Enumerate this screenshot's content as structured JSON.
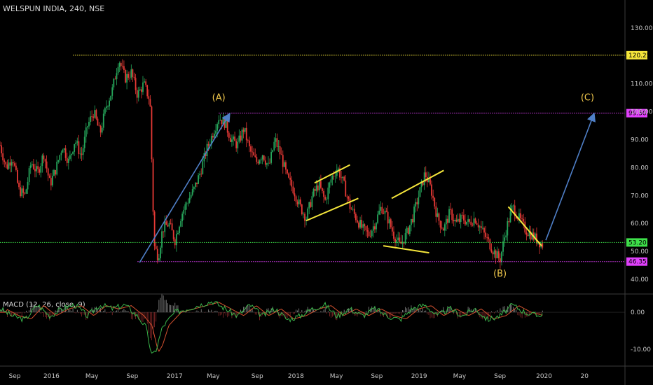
{
  "header": {
    "symbol_line": "WELSPUN INDIA, 240, NSE",
    "macd_label": "MACD (12, 26, close, 9)"
  },
  "colors": {
    "background": "#000000",
    "up_candle": "#26a65b",
    "down_candle": "#e53935",
    "trendline": "#f5e63b",
    "arrow": "#4f7fc7",
    "level_yellow": "#f5e63b",
    "level_magenta": "#e040fb",
    "level_green": "#3ee04a",
    "macd_line": "#3ab54a",
    "signal_line": "#d4512f"
  },
  "chart_data": {
    "type": "line",
    "title": "WELSPUN INDIA, 240, NSE",
    "y_axis": {
      "ticks": [
        "130.00",
        "110.00",
        "100.00",
        "90.00",
        "80.00",
        "70.00",
        "60.00",
        "50.00",
        "40.00"
      ],
      "min": 36,
      "max": 135
    },
    "x_axis": {
      "ticks": [
        "Sep",
        "2016",
        "May",
        "Sep",
        "2017",
        "May",
        "Sep",
        "2018",
        "May",
        "Sep",
        "2019",
        "May",
        "Sep",
        "2020",
        "20"
      ]
    },
    "price_path": [
      [
        0,
        88
      ],
      [
        3,
        80
      ],
      [
        6,
        84
      ],
      [
        9,
        72
      ],
      [
        12,
        70
      ],
      [
        15,
        82
      ],
      [
        18,
        78
      ],
      [
        21,
        85
      ],
      [
        24,
        74
      ],
      [
        27,
        80
      ],
      [
        30,
        88
      ],
      [
        33,
        82
      ],
      [
        36,
        90
      ],
      [
        39,
        84
      ],
      [
        42,
        95
      ],
      [
        45,
        100
      ],
      [
        48,
        92
      ],
      [
        51,
        102
      ],
      [
        54,
        108
      ],
      [
        57,
        119
      ],
      [
        60,
        112
      ],
      [
        63,
        114
      ],
      [
        66,
        106
      ],
      [
        69,
        110
      ],
      [
        72,
        104
      ],
      [
        74,
        52
      ],
      [
        76,
        48
      ],
      [
        78,
        58
      ],
      [
        81,
        60
      ],
      [
        84,
        54
      ],
      [
        87,
        63
      ],
      [
        90,
        68
      ],
      [
        93,
        72
      ],
      [
        96,
        78
      ],
      [
        99,
        86
      ],
      [
        102,
        92
      ],
      [
        105,
        98
      ],
      [
        108,
        96
      ],
      [
        111,
        90
      ],
      [
        114,
        88
      ],
      [
        117,
        94
      ],
      [
        120,
        86
      ],
      [
        123,
        82
      ],
      [
        126,
        85
      ],
      [
        129,
        80
      ],
      [
        132,
        90
      ],
      [
        135,
        84
      ],
      [
        138,
        76
      ],
      [
        141,
        72
      ],
      [
        144,
        66
      ],
      [
        147,
        62
      ],
      [
        150,
        70
      ],
      [
        153,
        74
      ],
      [
        156,
        68
      ],
      [
        159,
        76
      ],
      [
        162,
        80
      ],
      [
        165,
        74
      ],
      [
        168,
        66
      ],
      [
        171,
        62
      ],
      [
        174,
        58
      ],
      [
        177,
        56
      ],
      [
        180,
        60
      ],
      [
        183,
        66
      ],
      [
        186,
        62
      ],
      [
        189,
        56
      ],
      [
        192,
        52
      ],
      [
        195,
        56
      ],
      [
        198,
        62
      ],
      [
        201,
        70
      ],
      [
        204,
        78
      ],
      [
        207,
        72
      ],
      [
        210,
        62
      ],
      [
        213,
        58
      ],
      [
        216,
        64
      ],
      [
        219,
        60
      ],
      [
        222,
        62
      ],
      [
        225,
        60
      ],
      [
        228,
        62
      ],
      [
        231,
        58
      ],
      [
        234,
        54
      ],
      [
        237,
        50
      ],
      [
        240,
        47
      ],
      [
        243,
        58
      ],
      [
        246,
        66
      ],
      [
        249,
        62
      ],
      [
        252,
        58
      ],
      [
        255,
        56
      ],
      [
        258,
        54
      ],
      [
        261,
        52
      ]
    ],
    "levels": [
      {
        "value": 120.25,
        "label": "120.25",
        "color": "#f5e63b"
      },
      {
        "value": 99.5,
        "label": "99.50",
        "color": "#e040fb"
      },
      {
        "value": 53.2,
        "label": "53.20",
        "color": "#3ee04a"
      },
      {
        "value": 46.35,
        "label": "46.35",
        "color": "#e040fb"
      }
    ],
    "wave_labels": [
      {
        "text": "(A)",
        "x": 105,
        "y": 104
      },
      {
        "text": "(B)",
        "x": 240,
        "y": 41
      },
      {
        "text": "(C)",
        "x": 282,
        "y": 104
      }
    ],
    "trend_segments": [
      {
        "points": [
          [
            151,
            74.5
          ],
          [
            168,
            81
          ]
        ]
      },
      {
        "points": [
          [
            147,
            61
          ],
          [
            172,
            69
          ]
        ]
      },
      {
        "points": [
          [
            188,
            69
          ],
          [
            213,
            79
          ]
        ]
      },
      {
        "points": [
          [
            184,
            52
          ],
          [
            206,
            49.5
          ]
        ]
      },
      {
        "points": [
          [
            244,
            66
          ],
          [
            260,
            52
          ]
        ]
      }
    ],
    "arrows": [
      {
        "from": [
          67,
          46
        ],
        "to": [
          110,
          99
        ]
      },
      {
        "from": [
          262,
          54
        ],
        "to": [
          285,
          99
        ]
      }
    ],
    "macd": {
      "y_axis": {
        "ticks": [
          "0.00",
          "-10.00"
        ],
        "min": -14,
        "max": 4
      },
      "series": [
        [
          0,
          1
        ],
        [
          6,
          -1
        ],
        [
          12,
          -2
        ],
        [
          18,
          2
        ],
        [
          24,
          -1
        ],
        [
          30,
          1
        ],
        [
          36,
          2
        ],
        [
          42,
          -1
        ],
        [
          48,
          2
        ],
        [
          54,
          1
        ],
        [
          60,
          2
        ],
        [
          66,
          -1
        ],
        [
          70,
          -4
        ],
        [
          73,
          -12
        ],
        [
          75,
          -10
        ],
        [
          78,
          -4
        ],
        [
          84,
          0
        ],
        [
          90,
          1
        ],
        [
          96,
          2
        ],
        [
          102,
          3
        ],
        [
          108,
          1
        ],
        [
          114,
          -1
        ],
        [
          120,
          2
        ],
        [
          126,
          -1
        ],
        [
          132,
          1
        ],
        [
          138,
          -2
        ],
        [
          144,
          -1
        ],
        [
          150,
          1
        ],
        [
          156,
          2
        ],
        [
          162,
          -1
        ],
        [
          168,
          1
        ],
        [
          174,
          -1
        ],
        [
          180,
          1
        ],
        [
          186,
          -1
        ],
        [
          192,
          -2
        ],
        [
          198,
          1
        ],
        [
          204,
          2
        ],
        [
          210,
          -1
        ],
        [
          216,
          1
        ],
        [
          222,
          -1
        ],
        [
          228,
          1
        ],
        [
          234,
          -2
        ],
        [
          240,
          -1
        ],
        [
          246,
          2
        ],
        [
          252,
          0
        ],
        [
          258,
          -1
        ],
        [
          261,
          0
        ]
      ]
    }
  }
}
